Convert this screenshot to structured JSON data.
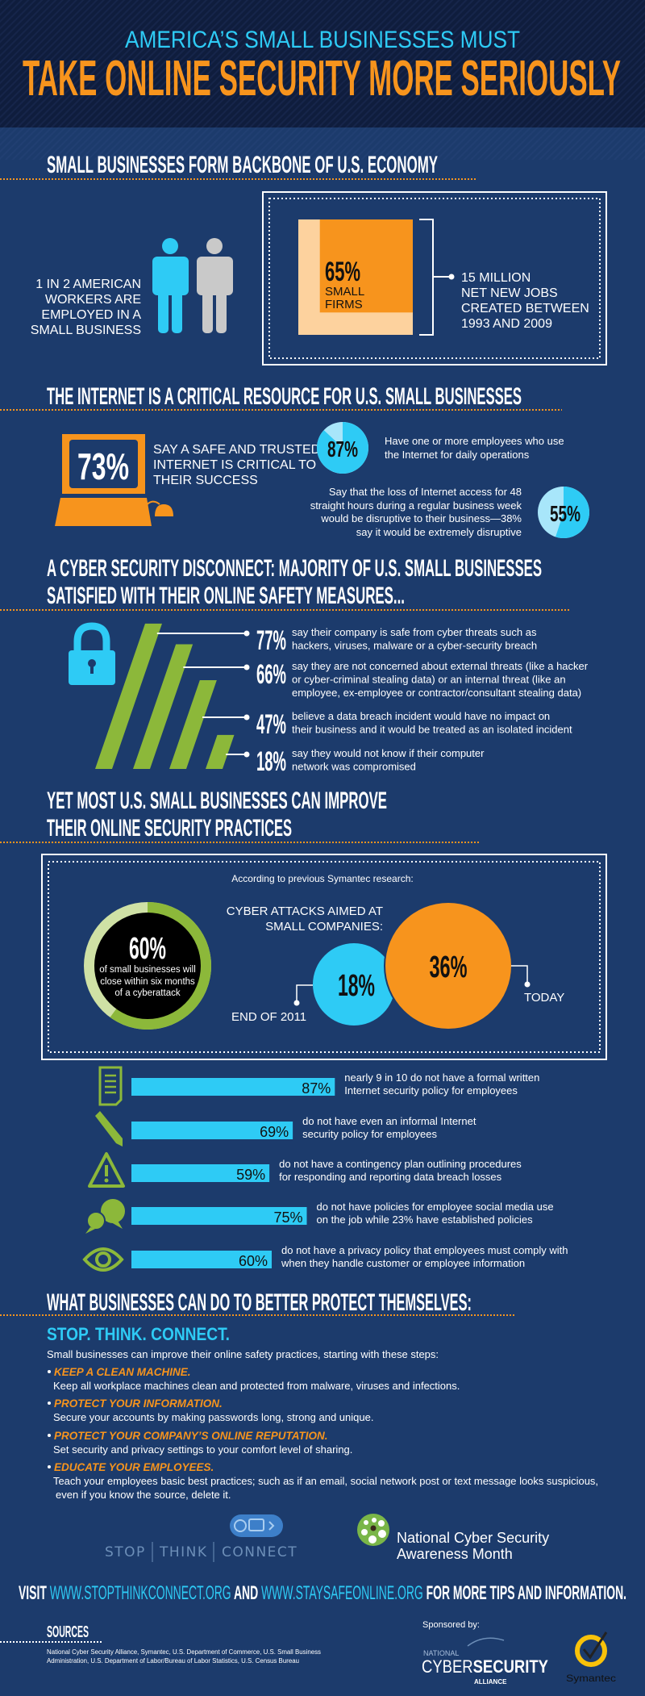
{
  "colors": {
    "header_bg": "#0f1d3d",
    "page_bg": "#1c3b6c",
    "cyan": "#2ecbf5",
    "orange": "#f7941d",
    "green": "#8cb83a",
    "light_orange": "#fdd29e",
    "white": "#ffffff"
  },
  "header": {
    "line1": "AMERICA’S SMALL BUSINESSES MUST",
    "line2": "TAKE ONLINE SECURITY MORE SERIOUSLY"
  },
  "backbone": {
    "heading": "SMALL BUSINESSES FORM BACKBONE OF U.S. ECONOMY",
    "workers_lines": [
      "1 IN 2 AMERICAN",
      "WORKERS ARE",
      "EMPLOYED IN A",
      "SMALL BUSINESS"
    ],
    "workers_icon": "people-icon",
    "firms_pct": "65%",
    "firms_value": 65,
    "firms_lines": [
      "SMALL",
      "FIRMS"
    ],
    "jobs_lines": [
      "15 MILLION",
      "NET NEW JOBS",
      "CREATED BETWEEN",
      "1993 AND 2009"
    ]
  },
  "internet": {
    "heading": "THE INTERNET IS A CRITICAL RESOURCE FOR U.S. SMALL BUSINESSES",
    "critical": {
      "pct": "73%",
      "icon": "computer-icon",
      "lines": [
        "SAY A SAFE AND TRUSTED",
        "INTERNET IS CRITICAL TO",
        "THEIR SUCCESS"
      ]
    },
    "employees": {
      "pct": "87%",
      "value": 87,
      "lines": [
        "Have one or more employees who use",
        "the Internet for daily operations"
      ]
    },
    "loss": {
      "pct": "55%",
      "value": 55,
      "lines": [
        "Say that the loss of Internet access for 48",
        "straight hours during a regular business week",
        "would be disruptive to their business—38%",
        "say it would be extremely disruptive"
      ]
    }
  },
  "disconnect": {
    "heading_lines": [
      "A CYBER SECURITY DISCONNECT: MAJORITY OF U.S. SMALL BUSINESSES",
      "SATISFIED WITH THEIR ONLINE SAFETY MEASURES..."
    ],
    "icon": "padlock-icon",
    "stats": [
      {
        "pct": "77%",
        "value": 77,
        "lines": [
          "say their company is safe from cyber threats such as",
          "hackers, viruses, malware or a cyber-security breach"
        ]
      },
      {
        "pct": "66%",
        "value": 66,
        "lines": [
          "say they are not concerned about external threats (like a hacker",
          "or cyber-criminal stealing data) or an internal threat (like an",
          "employee, ex-employee or contractor/consultant stealing data)"
        ]
      },
      {
        "pct": "47%",
        "value": 47,
        "lines": [
          "believe a data breach incident would have no impact on",
          "their business and it would be treated as an isolated incident"
        ]
      },
      {
        "pct": "18%",
        "value": 18,
        "lines": [
          "say they would not know if their computer",
          "network was compromised"
        ]
      }
    ]
  },
  "improve": {
    "heading_lines": [
      "YET MOST U.S. SMALL BUSINESSES CAN IMPROVE",
      "THEIR ONLINE SECURITY PRACTICES"
    ],
    "research_note": "According to previous Symantec research:",
    "close": {
      "pct": "60%",
      "value": 60,
      "lines": [
        "of small businesses will",
        "close within six months",
        "of a cyberattack"
      ]
    },
    "attacks": {
      "title_lines": [
        "CYBER ATTACKS AIMED AT",
        "SMALL COMPANIES:"
      ],
      "end2011": {
        "pct": "18%",
        "value": 18,
        "label": "END OF 2011"
      },
      "today": {
        "pct": "36%",
        "value": 36,
        "label": "TODAY"
      }
    },
    "policies": [
      {
        "icon": "document-icon",
        "pct": "87%",
        "value": 87,
        "lines": [
          "nearly 9 in 10 do not have a formal written",
          "Internet security policy for employees"
        ]
      },
      {
        "icon": "pencil-icon",
        "pct": "69%",
        "value": 69,
        "lines": [
          "do not have even an informal Internet",
          "security policy for employees"
        ]
      },
      {
        "icon": "warning-icon",
        "pct": "59%",
        "value": 59,
        "lines": [
          "do not have a contingency plan outlining procedures",
          "for responding and reporting data breach losses"
        ]
      },
      {
        "icon": "chat-bubbles-icon",
        "pct": "75%",
        "value": 75,
        "lines": [
          "do not have policies for employee social media use",
          "on the job while 23% have established policies"
        ]
      },
      {
        "icon": "eye-icon",
        "pct": "60%",
        "value": 60,
        "lines": [
          "do not have a privacy policy that employees must comply with",
          "when they handle customer or employee information"
        ]
      }
    ]
  },
  "protect": {
    "heading": "WHAT BUSINESSES CAN DO TO BETTER PROTECT THEMSELVES:",
    "subheading": "STOP. THINK. CONNECT.",
    "intro": "Small businesses can improve their online safety practices, starting with these steps:",
    "steps": [
      {
        "title": "KEEP A CLEAN MACHINE.",
        "lines": [
          "Keep all workplace machines clean and protected from malware, viruses and infections."
        ]
      },
      {
        "title": "PROTECT YOUR INFORMATION.",
        "lines": [
          "Secure your accounts by making passwords long, strong and unique."
        ]
      },
      {
        "title": "PROTECT YOUR COMPANY’S ONLINE REPUTATION.",
        "lines": [
          "Set security and privacy settings to your comfort level of sharing."
        ]
      },
      {
        "title": "EDUCATE YOUR EMPLOYEES.",
        "lines": [
          "Teach your employees basic best practices; such as if an email, social network post or text message looks suspicious,",
          "even if you know the source, delete it."
        ]
      }
    ]
  },
  "logos": {
    "stc_words": [
      "STOP",
      "THINK",
      "CONNECT"
    ],
    "ncsam_lines": [
      "National Cyber Security",
      "Awareness Month"
    ]
  },
  "visit": {
    "visit": "VISIT ",
    "url1": "WWW.STOPTHINKCONNECT.ORG",
    "and": " AND ",
    "url2": "WWW.STAYSAFEONLINE.ORG",
    "rest": " FOR MORE TIPS AND INFORMATION."
  },
  "sources": {
    "heading": "SOURCES",
    "lines": [
      "National Cyber Security Alliance, Symantec, U.S. Department of Commerce, U.S. Small Business",
      "Administration, U.S. Department of Labor/Bureau of Labor Statistics, U.S. Census Bureau"
    ]
  },
  "sponsors": {
    "label": "Sponsored by:",
    "ncsa": {
      "national": "NATIONAL",
      "cyber": "CYBER",
      "security": "SECURITY",
      "alliance": "ALLIANCE"
    },
    "symantec": "Symantec"
  }
}
